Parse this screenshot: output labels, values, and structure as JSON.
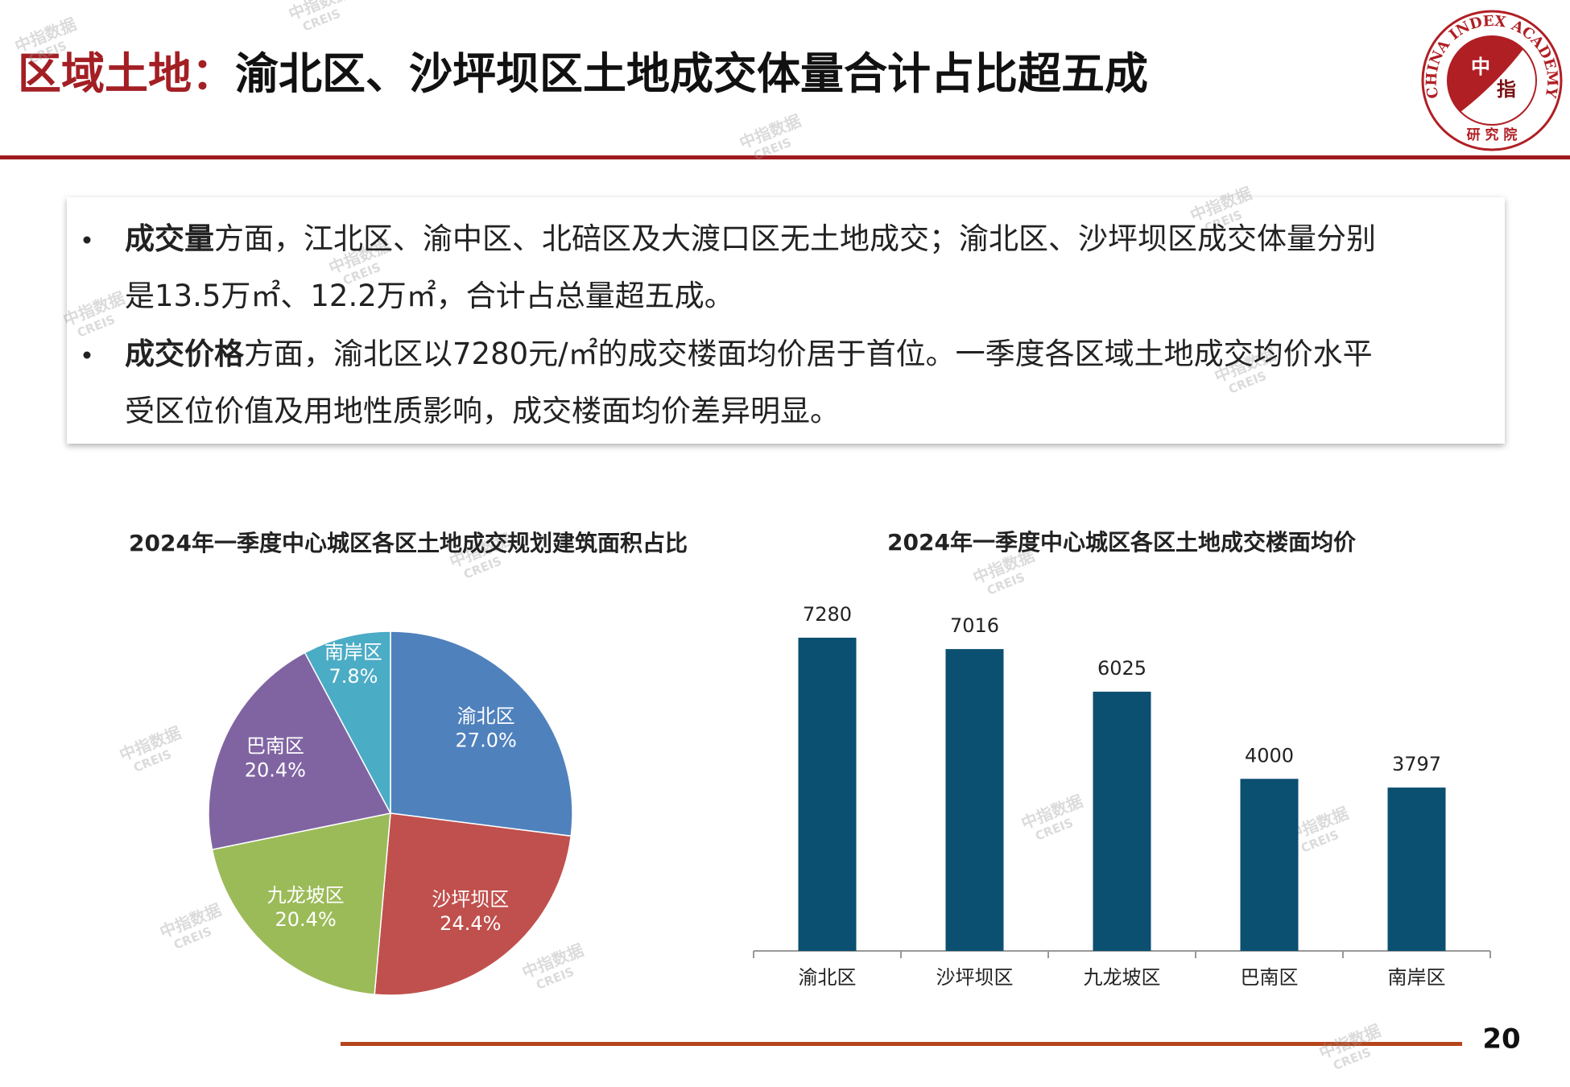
{
  "header": {
    "title_accent": "区域土地：",
    "title_main": "渝北区、沙坪坝区土地成交体量合计占比超五成"
  },
  "logo": {
    "ring": "CHINA INDEX ACADEMY",
    "center": [
      "中",
      "指"
    ],
    "bottom": "研 究 院"
  },
  "bullets": [
    {
      "bold": "成交量",
      "lines": [
        "方面，江北区、渝中区、北碚区及大渡口区无土地成交；渝北区、沙坪坝区成交体量分别",
        "是13.5万㎡、12.2万㎡，合计占总量超五成。"
      ]
    },
    {
      "bold": "成交价格",
      "lines": [
        "方面，渝北区以7280元/㎡的成交楼面均价居于首位。一季度各区域土地成交均价水平",
        "受区位价值及用地性质影响，成交楼面均价差异明显。"
      ]
    }
  ],
  "chart_data": [
    {
      "type": "pie",
      "title": "2024年一季度中心城区各区土地成交规划建筑面积占比",
      "categories": [
        "渝北区",
        "沙坪坝区",
        "九龙坡区",
        "巴南区",
        "南岸区"
      ],
      "values": [
        27.0,
        24.4,
        20.4,
        20.4,
        7.8
      ],
      "value_labels": [
        "27.0%",
        "24.4%",
        "20.4%",
        "20.4%",
        "7.8%"
      ],
      "colors": [
        "#4f81bd",
        "#c0504d",
        "#9bbb59",
        "#8064a2",
        "#4bacc6"
      ]
    },
    {
      "type": "bar",
      "title": "2024年一季度中心城区各区土地成交楼面均价",
      "categories": [
        "渝北区",
        "沙坪坝区",
        "九龙坡区",
        "巴南区",
        "南岸区"
      ],
      "values": [
        7280,
        7016,
        6025,
        4000,
        3797
      ],
      "color": "#0b4f71"
    }
  ],
  "watermark": [
    "中指数据",
    "CREIS"
  ],
  "page_number": "20"
}
